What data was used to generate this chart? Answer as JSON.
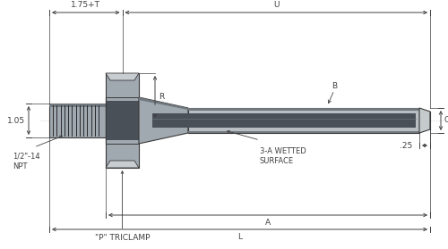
{
  "bg_color": "#ffffff",
  "line_color": "#3a3a3a",
  "dim_color": "#3a3a3a",
  "body_light": "#c8cdd2",
  "body_mid": "#a0a8b0",
  "body_dark": "#70787e",
  "body_darker": "#585e63",
  "bore_fill": "#4a5058",
  "thread_color": "#2a2a2a",
  "stem_outer": "#b8bec4",
  "stem_mid": "#9098a0",
  "tip_light": "#c5cacd",
  "flange_face": "#9aa2aa",
  "dim_line_color": "#404040",
  "dim_1_75_T_label": "1.75+T",
  "dim_U_label": "U",
  "dim_R_label": "R",
  "dim_B_label": "B",
  "dim_1_05_label": "1.05",
  "dim_Q_label": "Q",
  "dim_npt_label": "1/2\"-14\nNPT",
  "dim_wetted_label": "3-A WETTED\nSURFACE",
  "dim_25_label": ".25",
  "dim_A_label": "A",
  "dim_L_label": "L",
  "dim_triclamp_label": "\"P\" TRICLAMP",
  "font_size": 6.5
}
